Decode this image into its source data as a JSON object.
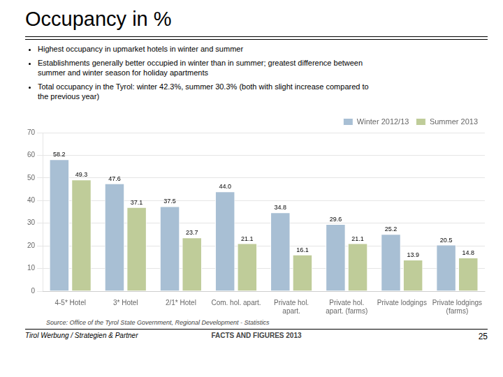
{
  "chart_data": {
    "type": "bar",
    "title": "Occupancy in %",
    "bullet_points": [
      "Highest occupancy in upmarket hotels in winter and summer",
      "Establishments generally better occupied in winter than in summer; greatest difference between\nsummer and winter season for holiday apartments",
      "Total occupancy in the Tyrol: winter 42.3%, summer 30.3% (both with slight increase compared to\nthe previous year)"
    ],
    "categories": [
      "4-5* Hotel",
      "3* Hotel",
      "2/1* Hotel",
      "Com. hol. apart.",
      "Private hol.\napart.",
      "Private hol.\napart. (farms)",
      "Private lodgings",
      "Private lodgings\n(farms)"
    ],
    "series": [
      {
        "name": "Winter 2012/13",
        "color": "#a8bfd4",
        "values": [
          58.2,
          47.6,
          37.5,
          44.0,
          34.8,
          29.6,
          25.2,
          20.5
        ],
        "value_labels": [
          "58.2",
          "47.6",
          "37.5",
          "44.0",
          "34.8",
          "29.6",
          "25.2",
          "20.5"
        ]
      },
      {
        "name": "Summer 2013",
        "color": "#bfcc99",
        "values": [
          49.3,
          37.1,
          23.7,
          21.1,
          16.1,
          21.1,
          13.9,
          14.8
        ]
      }
    ],
    "ylim": [
      0,
      70
    ],
    "yticks": [
      0,
      10,
      20,
      30,
      40,
      50,
      60,
      70
    ],
    "grid": true,
    "legend": "upper right",
    "data_labels": true,
    "source": "Source: Office of the Tyrol State Government, Regional Development - Statistics",
    "footer_left": "Tirol Werbung / Strategien & Partner",
    "footer_center": "FACTS AND FIGURES 2013",
    "footer_right": "25"
  }
}
